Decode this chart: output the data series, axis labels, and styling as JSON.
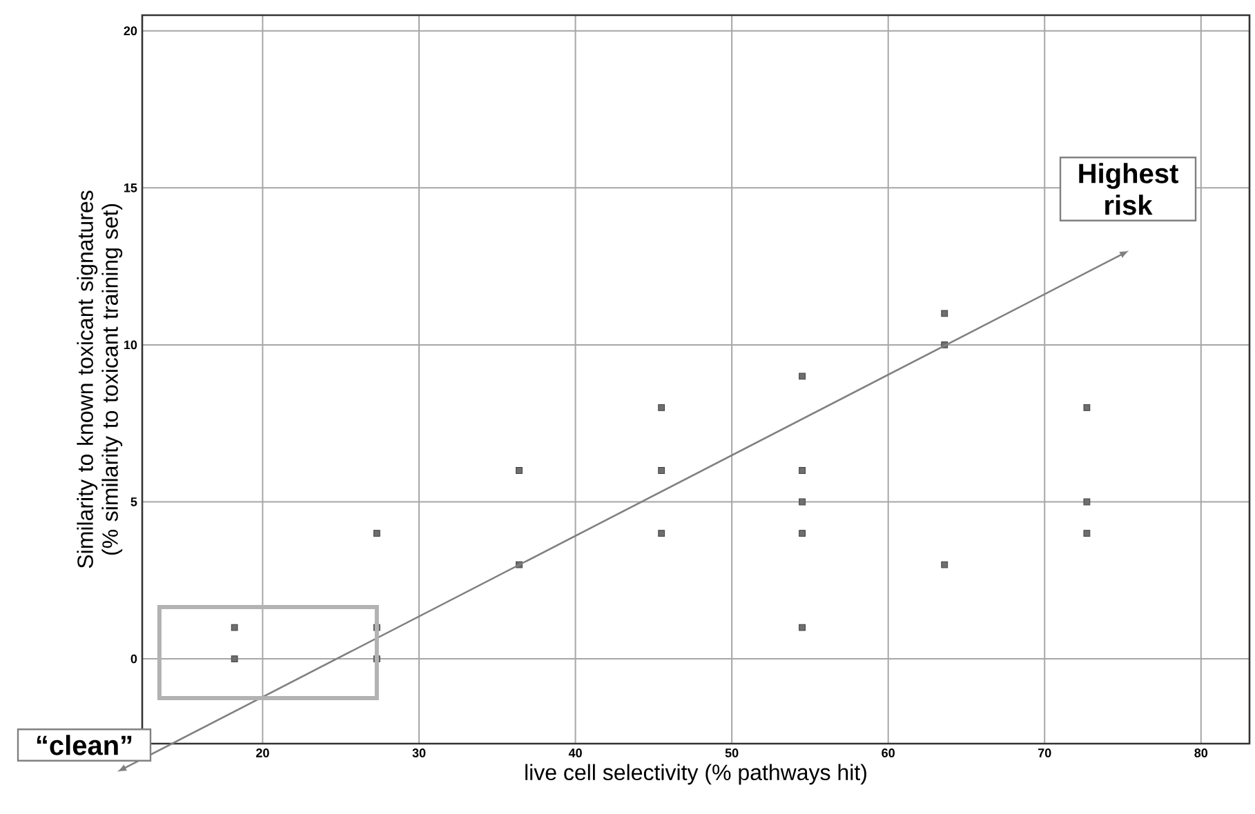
{
  "chart_data": {
    "type": "scatter",
    "xlabel": "live cell selectivity (% pathways hit)",
    "ylabel": "Similarity to known toxicant signatures (% similarity to toxicant training set)",
    "xlim": [
      12.3,
      83.1
    ],
    "ylim": [
      -2.7,
      20.5
    ],
    "xticks": [
      20,
      30,
      40,
      50,
      60,
      70,
      80
    ],
    "yticks": [
      0,
      5,
      10,
      15,
      20
    ],
    "grid": true,
    "marker": "square",
    "annotations": [
      "Highest risk",
      "“clean”"
    ],
    "series": [
      {
        "color": "#6e6e6e",
        "x": [
          18.2,
          18.2,
          27.3,
          27.3,
          27.3,
          36.4,
          36.4,
          45.5,
          45.5,
          45.5,
          54.5,
          54.5,
          54.5,
          54.5,
          54.5,
          63.6,
          63.6,
          63.6,
          72.7,
          72.7,
          72.7
        ],
        "values": [
          1,
          0,
          4,
          1,
          0,
          6,
          3,
          8,
          6,
          4,
          9,
          6,
          5,
          4,
          1,
          11,
          10,
          3,
          8,
          5,
          4
        ]
      }
    ]
  }
}
